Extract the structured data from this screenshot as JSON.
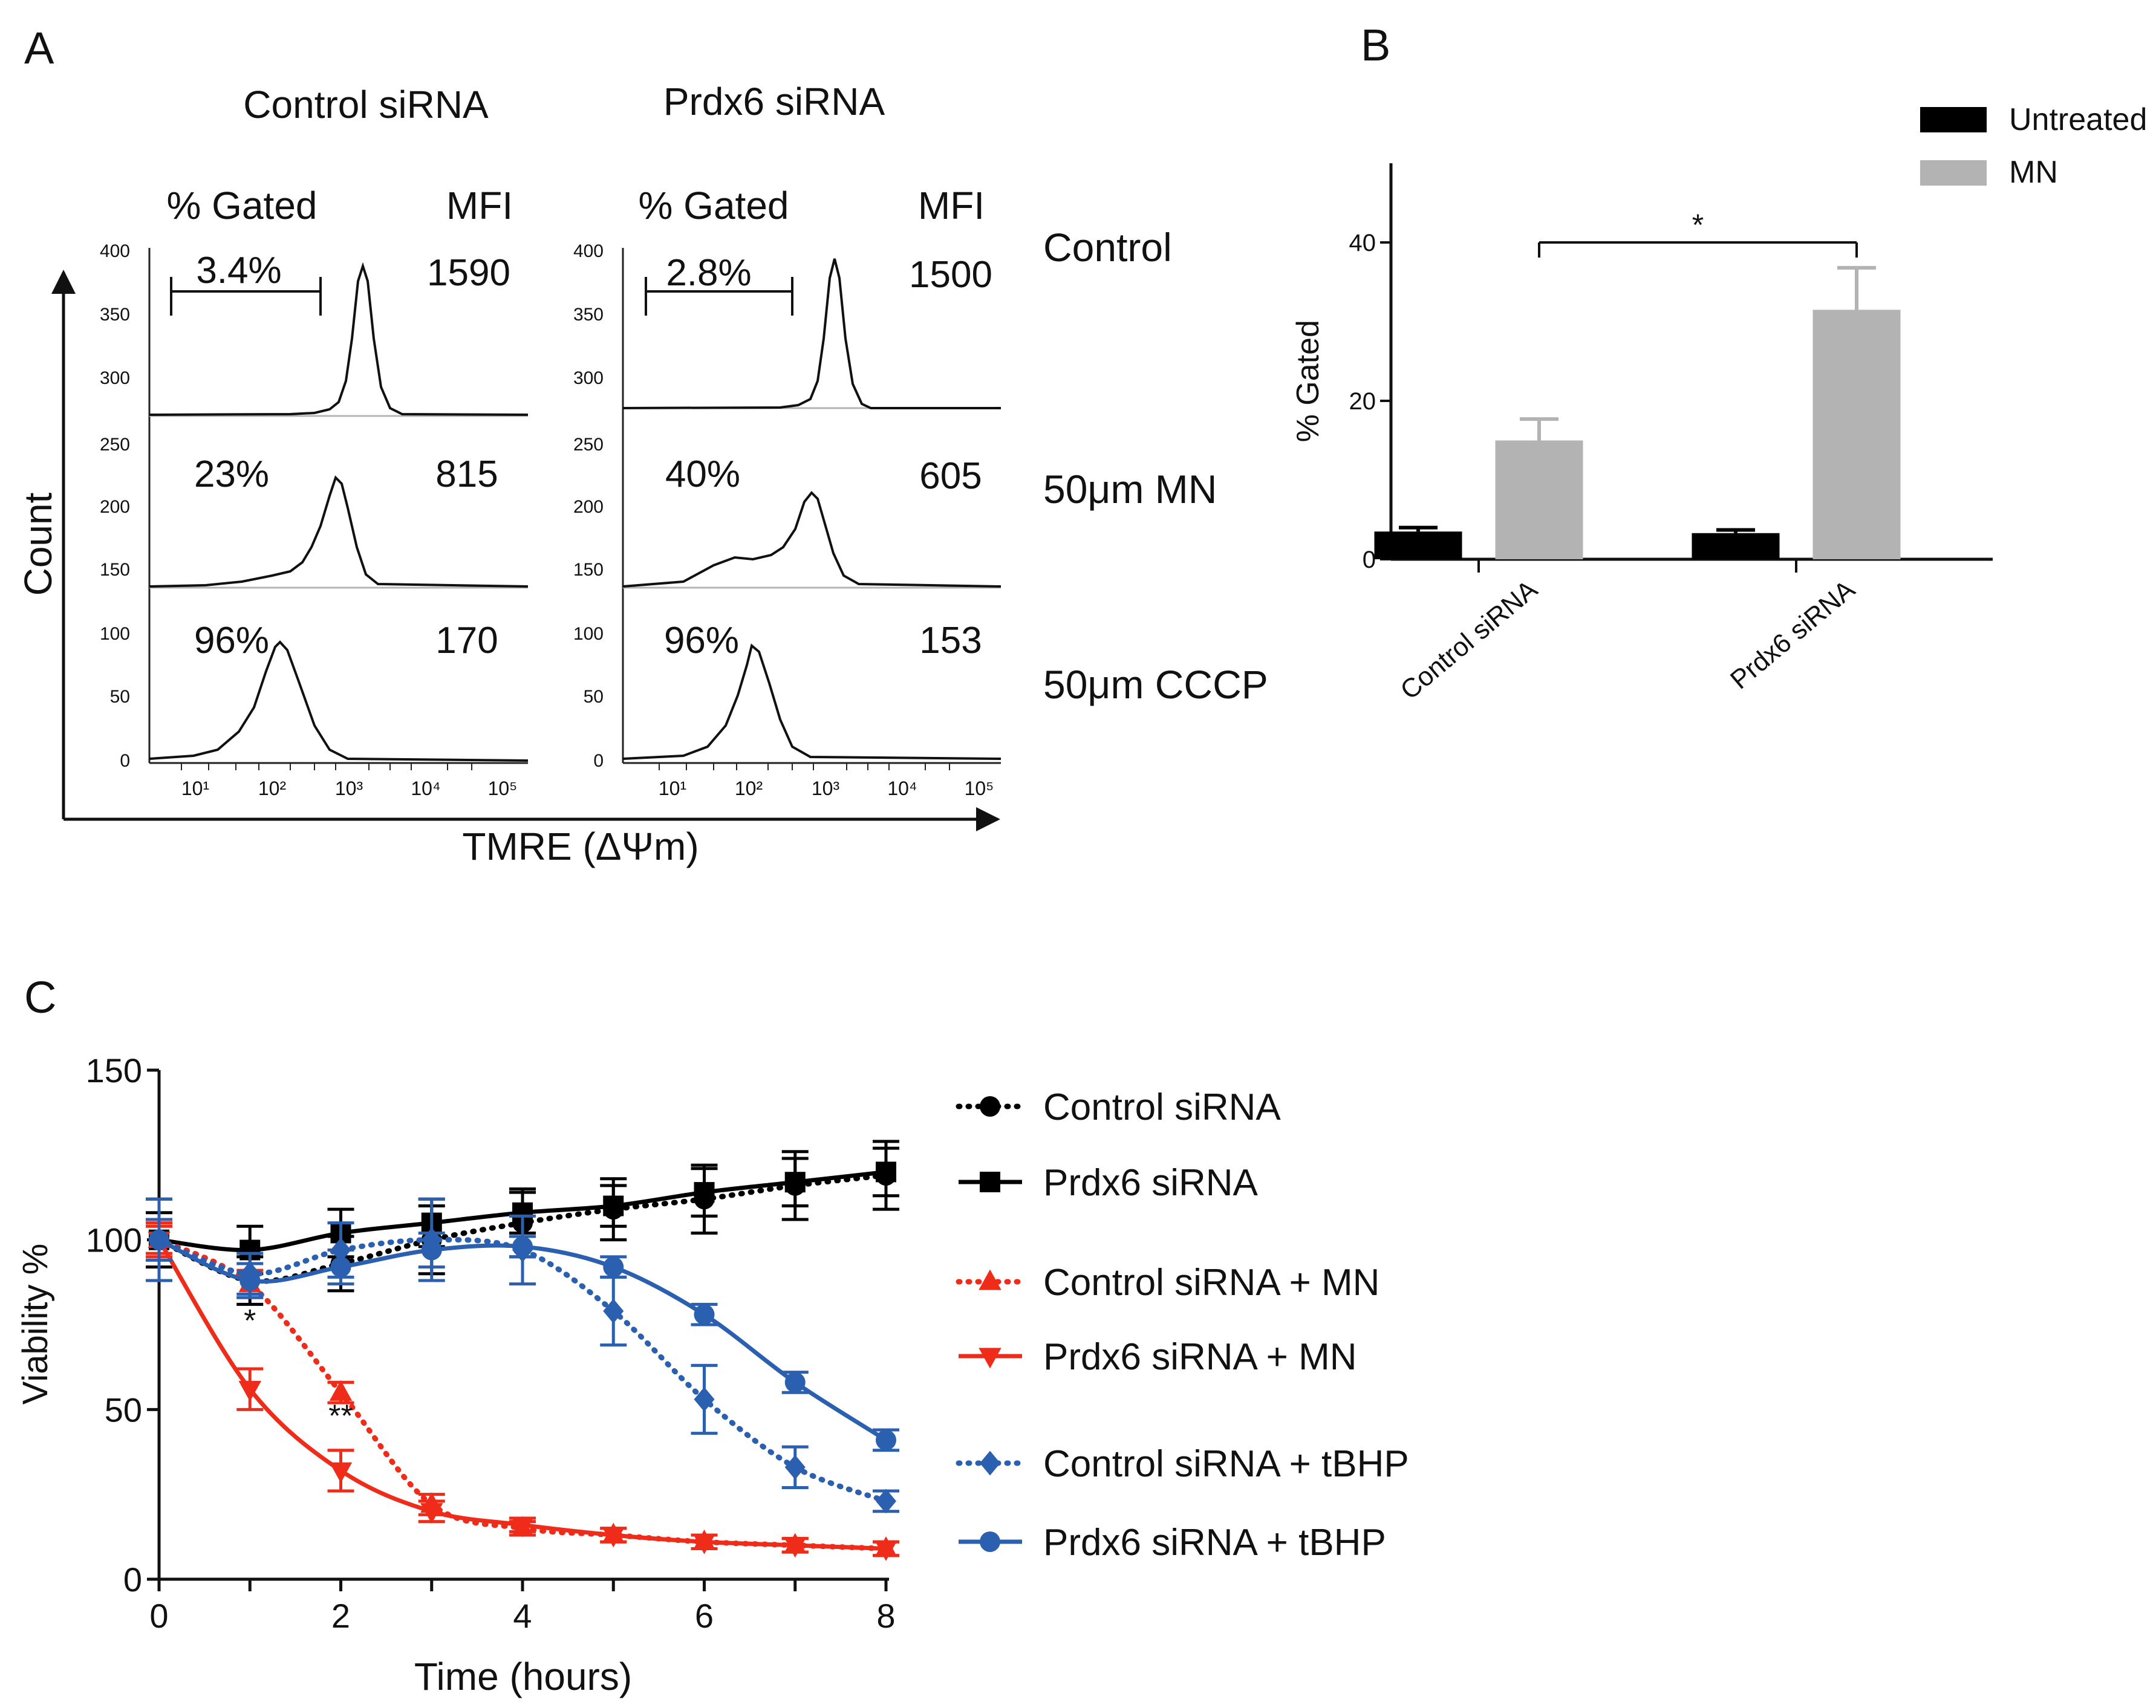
{
  "panels": {
    "a": "A",
    "b": "B",
    "c": "C"
  },
  "panelA": {
    "columns": [
      "Control siRNA",
      "Prdx6 siRNA"
    ],
    "gated_header": "% Gated",
    "mfi_header": "MFI",
    "rows": [
      "Control",
      "50μm MN",
      "50μm CCCP"
    ],
    "yticks": [
      "400",
      "350",
      "300",
      "250",
      "200",
      "150",
      "100",
      "50",
      "0"
    ],
    "xticks": [
      "10¹",
      "10²",
      "10³",
      "10⁴",
      "10⁵"
    ],
    "ylabel": "Count",
    "xlabel": "TMRE (ΔΨm)",
    "cells": [
      [
        {
          "gated": "3.4%",
          "mfi": "1590"
        },
        {
          "gated": "2.8%",
          "mfi": "1500"
        }
      ],
      [
        {
          "gated": "23%",
          "mfi": "815"
        },
        {
          "gated": "40%",
          "mfi": "605"
        }
      ],
      [
        {
          "gated": "96%",
          "mfi": "170"
        },
        {
          "gated": "96%",
          "mfi": "153"
        }
      ]
    ]
  },
  "chart_data": [
    {
      "type": "bar",
      "panel": "B",
      "categories": [
        "Control siRNA",
        "Prdx6 siRNA"
      ],
      "series": [
        {
          "name": "Untreated",
          "color": "#000000",
          "values": [
            3.5,
            3.3
          ],
          "errors": [
            0.5,
            0.4
          ]
        },
        {
          "name": "MN",
          "color": "#b3b3b3",
          "values": [
            15,
            31.5
          ],
          "errors": [
            2.7,
            5.3
          ]
        }
      ],
      "ylabel": "% Gated",
      "yticks": [
        0,
        20,
        40
      ],
      "ylim": [
        0,
        50
      ],
      "significance": {
        "from": "Control siRNA / MN",
        "to": "Prdx6 siRNA / MN",
        "label": "*"
      },
      "legend": "top-right"
    },
    {
      "type": "line",
      "panel": "C",
      "x": [
        0,
        1,
        2,
        3,
        4,
        5,
        6,
        7,
        8
      ],
      "xlabel": "Time (hours)",
      "ylabel": "Viability %",
      "xlim": [
        0,
        8
      ],
      "ylim": [
        0,
        150
      ],
      "xticks": [
        0,
        2,
        4,
        6,
        8
      ],
      "yticks": [
        0,
        50,
        100,
        150
      ],
      "series": [
        {
          "name": "Control siRNA",
          "color": "#000000",
          "dash": true,
          "marker": "circle",
          "values": [
            100,
            88,
            93,
            100,
            105,
            109,
            112,
            116,
            119
          ],
          "errors": [
            12,
            7,
            8,
            10,
            10,
            9,
            10,
            10,
            10
          ]
        },
        {
          "name": "Prdx6 siRNA",
          "color": "#000000",
          "dash": false,
          "marker": "square",
          "values": [
            100,
            97,
            102,
            105,
            108,
            110,
            114,
            117,
            120
          ],
          "errors": [
            8,
            7,
            7,
            7,
            6,
            6,
            7,
            7,
            7
          ]
        },
        {
          "name": "Control siRNA  + MN",
          "color": "#ef2b1a",
          "dash": true,
          "marker": "triangle-up",
          "values": [
            100,
            87,
            55,
            22,
            15,
            13,
            11,
            10,
            9
          ],
          "errors": [
            4,
            4,
            3,
            3,
            2,
            2,
            2,
            2,
            2
          ]
        },
        {
          "name": "Prdx6 siRNA + MN",
          "color": "#ef2b1a",
          "dash": false,
          "marker": "triangle-down",
          "values": [
            100,
            56,
            32,
            20,
            16,
            13,
            11,
            10,
            9
          ],
          "errors": [
            5,
            6,
            6,
            3,
            2,
            2,
            2,
            2,
            2
          ]
        },
        {
          "name": "Control siRNA  + tBHP",
          "color": "#2b5fb0",
          "dash": true,
          "marker": "diamond",
          "values": [
            100,
            90,
            97,
            100,
            97,
            79,
            53,
            33,
            23
          ],
          "errors": [
            12,
            6,
            8,
            12,
            10,
            10,
            10,
            6,
            3
          ]
        },
        {
          "name": "Prdx6 siRNA + tBHP",
          "color": "#2b5fb0",
          "dash": false,
          "marker": "circle",
          "values": [
            100,
            88,
            92,
            97,
            98,
            92,
            78,
            58,
            41
          ],
          "errors": [
            6,
            5,
            5,
            5,
            3,
            3,
            3,
            3,
            3
          ]
        }
      ],
      "annotations": [
        {
          "x": 1,
          "label": "*"
        },
        {
          "x": 2,
          "label": "**"
        }
      ]
    }
  ]
}
